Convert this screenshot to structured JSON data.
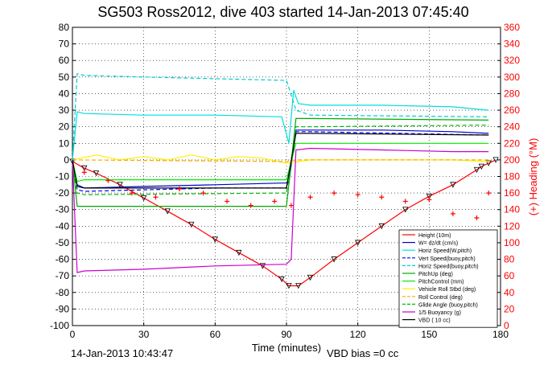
{
  "figure": {
    "title": "SG503 Ross2012, dive 403 started 14-Jan-2013 07:45:40",
    "timestamp": "14-Jan-2013 10:43:47",
    "vbd_bias": "VBD bias =0 cc"
  },
  "chart_data": {
    "type": "line",
    "xlabel": "Time (minutes)",
    "ylabel": "",
    "ylabel_right": "(+) Heading (°M)",
    "xlim": [
      0,
      180
    ],
    "ylim": [
      -100,
      80
    ],
    "ylim_right": [
      0,
      360
    ],
    "xticks": [
      0,
      30,
      60,
      90,
      120,
      150,
      180
    ],
    "yticks": [
      -100,
      -90,
      -80,
      -70,
      -60,
      -50,
      -40,
      -30,
      -20,
      -10,
      0,
      10,
      20,
      30,
      40,
      50,
      60,
      70,
      80
    ],
    "yticks_right": [
      0,
      20,
      40,
      60,
      80,
      100,
      120,
      140,
      160,
      180,
      200,
      220,
      240,
      260,
      280,
      300,
      320,
      340,
      360
    ],
    "grid": true,
    "legend_position": "bottom-right",
    "series": [
      {
        "name": "Height (10m)",
        "color": "#ff0000",
        "style": "solid",
        "marker": "triangle",
        "x": [
          0,
          5,
          10,
          20,
          30,
          40,
          50,
          60,
          70,
          80,
          88,
          91,
          95,
          100,
          110,
          120,
          130,
          140,
          150,
          160,
          170,
          172,
          175,
          178
        ],
        "y": [
          -1,
          -5,
          -8,
          -15,
          -23,
          -31,
          -39,
          -48,
          -56,
          -64,
          -72,
          -76,
          -76,
          -71,
          -60,
          -50,
          -40,
          -30,
          -22,
          -15,
          -6,
          -4,
          -2,
          0
        ]
      },
      {
        "name": "W= dz/dt (cm/s)",
        "color": "#0000cc",
        "style": "solid",
        "x": [
          0,
          2,
          5,
          30,
          60,
          88,
          91,
          94,
          100,
          130,
          160,
          175
        ],
        "y": [
          0,
          -15,
          -17,
          -16,
          -15,
          -14,
          -14,
          18,
          18,
          18,
          17,
          16
        ]
      },
      {
        "name": "Horiz Speed(W,pitch)",
        "color": "#00dddd",
        "style": "solid",
        "x": [
          0,
          2,
          5,
          30,
          60,
          88,
          91,
          93,
          95,
          100,
          130,
          160,
          175
        ],
        "y": [
          0,
          29,
          28,
          27,
          27,
          26,
          10,
          42,
          34,
          33,
          33,
          32,
          30
        ]
      },
      {
        "name": "Vert Speed(buoy,pitch)",
        "color": "#0000ff",
        "style": "dash",
        "x": [
          0,
          2,
          5,
          60,
          90,
          94,
          100,
          175
        ],
        "y": [
          0,
          -18,
          -19,
          -17,
          -17,
          17,
          17,
          15
        ]
      },
      {
        "name": "Horiz Speed(buoy,pitch)",
        "color": "#00cccc",
        "style": "dash",
        "x": [
          0,
          2,
          5,
          30,
          60,
          90,
          94,
          100,
          175
        ],
        "y": [
          0,
          52,
          51,
          50,
          49,
          48,
          30,
          27,
          26
        ]
      },
      {
        "name": "PitchUp (deg)",
        "color": "#00aa00",
        "style": "solid",
        "x": [
          0,
          2,
          5,
          90,
          94,
          100,
          175
        ],
        "y": [
          0,
          -28,
          -28,
          -28,
          25,
          25,
          24
        ]
      },
      {
        "name": "PitchControl (mm)",
        "color": "#00ee00",
        "style": "solid",
        "x": [
          0,
          2,
          5,
          90,
          94,
          100,
          175
        ],
        "y": [
          0,
          -13,
          -12,
          -12,
          10,
          10,
          10
        ]
      },
      {
        "name": "Vehicle Roll Stbd (deg)",
        "color": "#ffee00",
        "style": "solid",
        "x": [
          0,
          10,
          20,
          30,
          40,
          50,
          60,
          70,
          80,
          90,
          100,
          110,
          120,
          130,
          140,
          150,
          160,
          175
        ],
        "y": [
          0,
          3,
          0,
          2,
          0,
          3,
          0,
          2,
          1,
          -2,
          0,
          0,
          0,
          0,
          0,
          0,
          0,
          -1
        ]
      },
      {
        "name": "Roll Control (deg)",
        "color": "#ffaa00",
        "style": "dash",
        "x": [
          0,
          90,
          94,
          175
        ],
        "y": [
          0,
          -1,
          0,
          0
        ]
      },
      {
        "name": "Glide Angle (buoy,pitch)",
        "color": "#00bb00",
        "style": "dash",
        "x": [
          0,
          2,
          5,
          90,
          94,
          100,
          175
        ],
        "y": [
          0,
          -20,
          -21,
          -20,
          20,
          20,
          21
        ]
      },
      {
        "name": "1/5 Buoyancy (g)",
        "color": "#cc00cc",
        "style": "solid",
        "x": [
          0,
          2,
          5,
          30,
          60,
          90,
          92,
          94,
          100,
          130,
          160,
          175
        ],
        "y": [
          0,
          -68,
          -67,
          -66,
          -64,
          -63,
          -60,
          6,
          7,
          6,
          5,
          5
        ]
      },
      {
        "name": "VBD ( 10 cc)",
        "color": "#000000",
        "style": "solid",
        "x": [
          0,
          2,
          5,
          90,
          94,
          100,
          175
        ],
        "y": [
          0,
          -16,
          -17,
          -17,
          16,
          16,
          15
        ]
      },
      {
        "name": "Heading",
        "color": "#ff0000",
        "style": "marker",
        "axis": "right",
        "x": [
          5,
          15,
          25,
          35,
          45,
          55,
          65,
          75,
          85,
          92,
          100,
          110,
          120,
          130,
          140,
          150,
          160,
          170,
          175
        ],
        "y": [
          185,
          175,
          160,
          155,
          165,
          160,
          150,
          145,
          150,
          145,
          155,
          160,
          158,
          155,
          150,
          152,
          135,
          130,
          160
        ]
      }
    ]
  }
}
